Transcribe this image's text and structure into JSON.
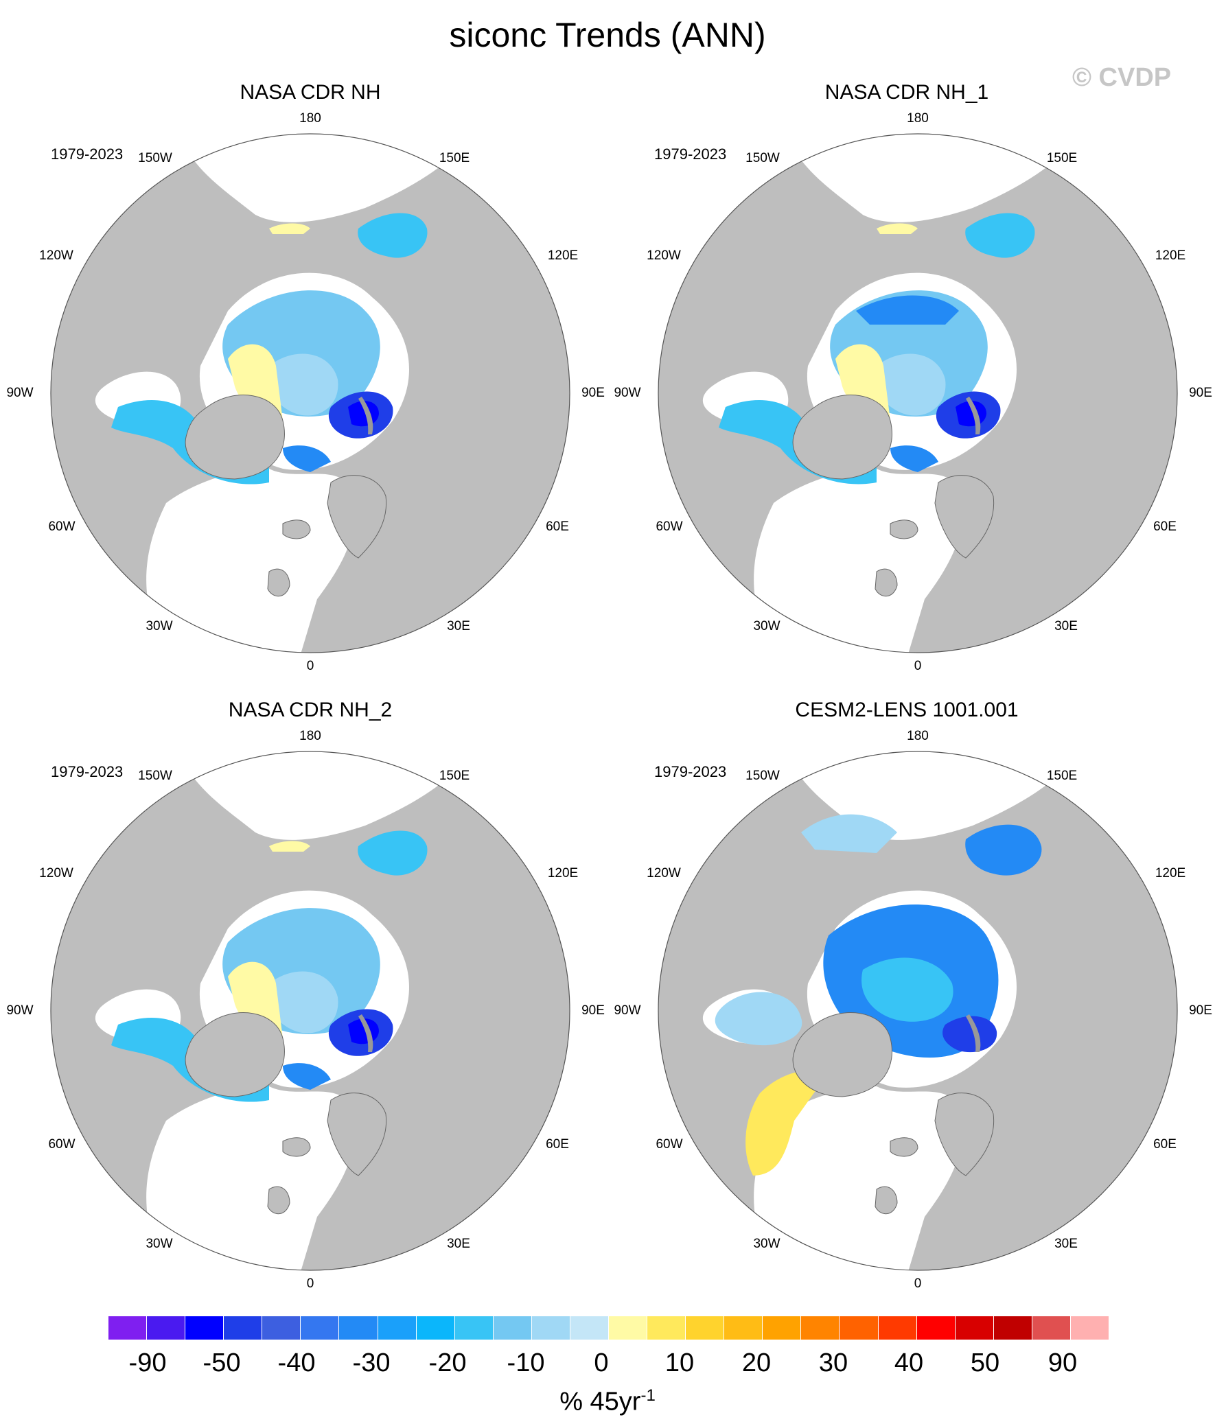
{
  "title": "siconc Trends (ANN)",
  "watermark": "© CVDP",
  "panels": [
    {
      "title": "NASA CDR NH",
      "period": "1979-2023",
      "variant": "obs",
      "labels": {
        "180": "180",
        "150W": "150W",
        "150E": "150E",
        "120W": "120W",
        "120E": "120E",
        "90W": "90W",
        "90E": "90E",
        "60W": "60W",
        "60E": "60E",
        "30W": "30W",
        "30E": "30E",
        "0": "0"
      }
    },
    {
      "title": "NASA CDR NH_1",
      "period": "1979-2023",
      "variant": "obs1",
      "labels": {
        "180": "180",
        "150W": "150W",
        "150E": "150E",
        "120W": "120W",
        "120E": "120E",
        "90W": "90W",
        "90E": "90E",
        "60W": "60W",
        "60E": "60E",
        "30W": "30W",
        "30E": "30E",
        "0": "0"
      }
    },
    {
      "title": "NASA CDR NH_2",
      "period": "1979-2023",
      "variant": "obs",
      "labels": {
        "180": "180",
        "150W": "150W",
        "150E": "150E",
        "120W": "120W",
        "120E": "120E",
        "90W": "90W",
        "90E": "90E",
        "60W": "60W",
        "60E": "60E",
        "30W": "30W",
        "30E": "30E",
        "0": "0"
      }
    },
    {
      "title": "CESM2-LENS 1001.001",
      "period": "1979-2023",
      "variant": "model",
      "labels": {
        "180": "180",
        "150W": "150W",
        "150E": "150E",
        "120W": "120W",
        "120E": "120E",
        "90W": "90W",
        "90E": "90E",
        "60W": "60W",
        "60E": "60E",
        "30W": "30W",
        "30E": "30E",
        "0": "0"
      }
    }
  ],
  "colorbar": {
    "colors": [
      "#7f1ff0",
      "#4a1af0",
      "#0000ff",
      "#1f3ee8",
      "#3d5fe0",
      "#3477f0",
      "#238af5",
      "#1aa0fa",
      "#0bb6fb",
      "#38c4f5",
      "#74c8f2",
      "#a0d8f5",
      "#c4e6f7",
      "#fffaa5",
      "#ffe95c",
      "#ffd32d",
      "#ffbc15",
      "#ffa200",
      "#ff8400",
      "#ff6200",
      "#ff3a00",
      "#ff0000",
      "#d80000",
      "#c00000",
      "#e05050",
      "#ffb0b0"
    ],
    "ticks": [
      "-90",
      "-50",
      "-40",
      "-30",
      "-20",
      "-10",
      "0",
      "10",
      "20",
      "30",
      "40",
      "50",
      "90"
    ],
    "units_main": "% 45yr",
    "units_exp": "-1"
  },
  "legend_colors": {
    "land": "#bebebe",
    "ocean": "#ffffff",
    "coast": "#555555"
  }
}
